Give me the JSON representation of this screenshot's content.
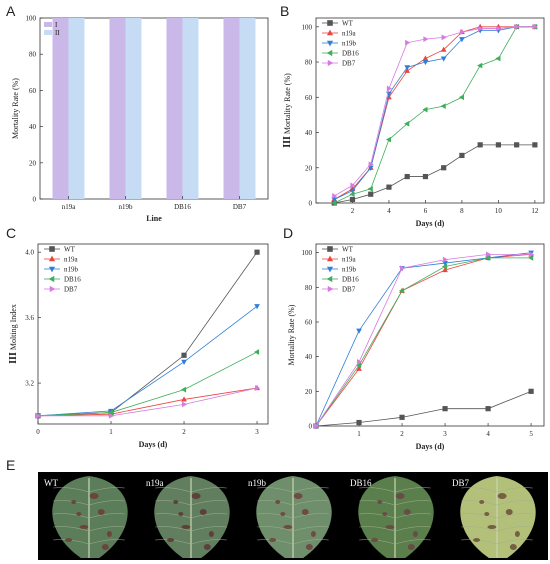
{
  "panels": {
    "A": {
      "letter": "A",
      "chart_data": {
        "type": "bar",
        "categories": [
          "n19a",
          "n19b",
          "DB16",
          "DB7"
        ],
        "series": [
          {
            "name": "I",
            "values": [
              100,
              100,
              100,
              100
            ],
            "color": "#c9b8e8"
          },
          {
            "name": "II",
            "values": [
              100,
              100,
              100,
              100
            ],
            "color": "#c6dcf5"
          }
        ],
        "xlabel": "Line",
        "ylabel": "Mortality Rate (%)",
        "ylim": [
          0,
          100
        ],
        "yticks": [
          0,
          20,
          40,
          60,
          80,
          100
        ],
        "legend": "top-left"
      }
    },
    "B": {
      "letter": "B",
      "chart_data": {
        "type": "line",
        "x": [
          1,
          2,
          3,
          4,
          5,
          6,
          7,
          8,
          9,
          10,
          11,
          12
        ],
        "series": [
          {
            "name": "WT",
            "color": "#555555",
            "marker": "square",
            "values": [
              0,
              2,
              5,
              9,
              15,
              15,
              20,
              27,
              33,
              33,
              33,
              33
            ]
          },
          {
            "name": "n19a",
            "color": "#e8473f",
            "marker": "triangle-up",
            "values": [
              2,
              8,
              20,
              60,
              75,
              82,
              87,
              97,
              100,
              100,
              100,
              100
            ]
          },
          {
            "name": "n19b",
            "color": "#2f7fd8",
            "marker": "triangle-down",
            "values": [
              2,
              7,
              20,
              62,
              77,
              80,
              82,
              93,
              98,
              98,
              100,
              100
            ]
          },
          {
            "name": "DB16",
            "color": "#3fae5a",
            "marker": "triangle-left",
            "values": [
              0,
              5,
              8,
              36,
              45,
              53,
              55,
              60,
              78,
              82,
              100,
              100
            ]
          },
          {
            "name": "DB7",
            "color": "#d77be0",
            "marker": "triangle-right",
            "values": [
              4,
              10,
              22,
              65,
              91,
              93,
              94,
              97,
              99,
              99,
              100,
              100
            ]
          }
        ],
        "xlabel": "Days (d)",
        "ylabel_prefix": "III",
        "ylabel": " Mortality Rate (%)",
        "xlim": [
          0,
          12.5
        ],
        "ylim": [
          0,
          105
        ],
        "xticks": [
          2,
          4,
          6,
          8,
          10,
          12
        ],
        "yticks": [
          0,
          20,
          40,
          60,
          80,
          100
        ],
        "legend": "top-left"
      }
    },
    "C": {
      "letter": "C",
      "chart_data": {
        "type": "line",
        "x": [
          0,
          1,
          2,
          3
        ],
        "series": [
          {
            "name": "WT",
            "color": "#555555",
            "marker": "square",
            "values": [
              3.0,
              3.02,
              3.37,
              4.0
            ]
          },
          {
            "name": "n19a",
            "color": "#e8473f",
            "marker": "triangle-up",
            "values": [
              3.0,
              3.01,
              3.1,
              3.17
            ]
          },
          {
            "name": "n19b",
            "color": "#2f7fd8",
            "marker": "triangle-down",
            "values": [
              3.0,
              3.03,
              3.33,
              3.67
            ]
          },
          {
            "name": "DB16",
            "color": "#3fae5a",
            "marker": "triangle-left",
            "values": [
              3.0,
              3.02,
              3.16,
              3.39
            ]
          },
          {
            "name": "DB7",
            "color": "#d77be0",
            "marker": "triangle-right",
            "values": [
              3.0,
              3.0,
              3.07,
              3.17
            ]
          }
        ],
        "xlabel": "Days (d)",
        "ylabel_prefix": "III",
        "ylabel": " Molting Index",
        "xlim": [
          0,
          3.15
        ],
        "ylim": [
          2.95,
          4.05
        ],
        "xticks": [
          0,
          1,
          2,
          3
        ],
        "yticks": [
          3.2,
          3.6,
          4.0
        ],
        "ytick_labels": [
          "3.2",
          "3.6",
          "4.0"
        ],
        "legend": "top-left"
      }
    },
    "D": {
      "letter": "D",
      "chart_data": {
        "type": "line",
        "x": [
          0,
          1,
          2,
          3,
          4,
          5
        ],
        "series": [
          {
            "name": "WT",
            "color": "#555555",
            "marker": "square",
            "values": [
              0,
              2,
              5,
              10,
              10,
              20
            ]
          },
          {
            "name": "n19a",
            "color": "#e8473f",
            "marker": "triangle-up",
            "values": [
              0,
              33,
              78,
              90,
              97,
              99
            ]
          },
          {
            "name": "n19b",
            "color": "#2f7fd8",
            "marker": "triangle-down",
            "values": [
              0,
              55,
              91,
              94,
              97,
              100
            ]
          },
          {
            "name": "DB16",
            "color": "#3fae5a",
            "marker": "triangle-left",
            "values": [
              0,
              35,
              78,
              92,
              97,
              97
            ]
          },
          {
            "name": "DB7",
            "color": "#d77be0",
            "marker": "triangle-right",
            "values": [
              0,
              37,
              91,
              96,
              99,
              99
            ]
          }
        ],
        "xlabel": "Days (d)",
        "ylabel": "Mortality Rate (%)",
        "xlim": [
          0,
          5.3
        ],
        "ylim": [
          0,
          105
        ],
        "xticks": [
          1,
          2,
          3,
          4,
          5
        ],
        "yticks": [
          0,
          20,
          40,
          60,
          80,
          100
        ],
        "legend": "top-left"
      }
    },
    "E": {
      "letter": "E",
      "leaves": [
        {
          "label": "WT",
          "color": "#5b7d5a",
          "spot": "#6e3b38"
        },
        {
          "label": "n19a",
          "color": "#617f5f",
          "spot": "#5e3434"
        },
        {
          "label": "n19b",
          "color": "#6f8f6c",
          "spot": "#714040"
        },
        {
          "label": "DB16",
          "color": "#5a7e4c",
          "spot": "#6a4444"
        },
        {
          "label": "DB7",
          "color": "#b3c07a",
          "spot": "#6b4d3a"
        }
      ]
    }
  }
}
